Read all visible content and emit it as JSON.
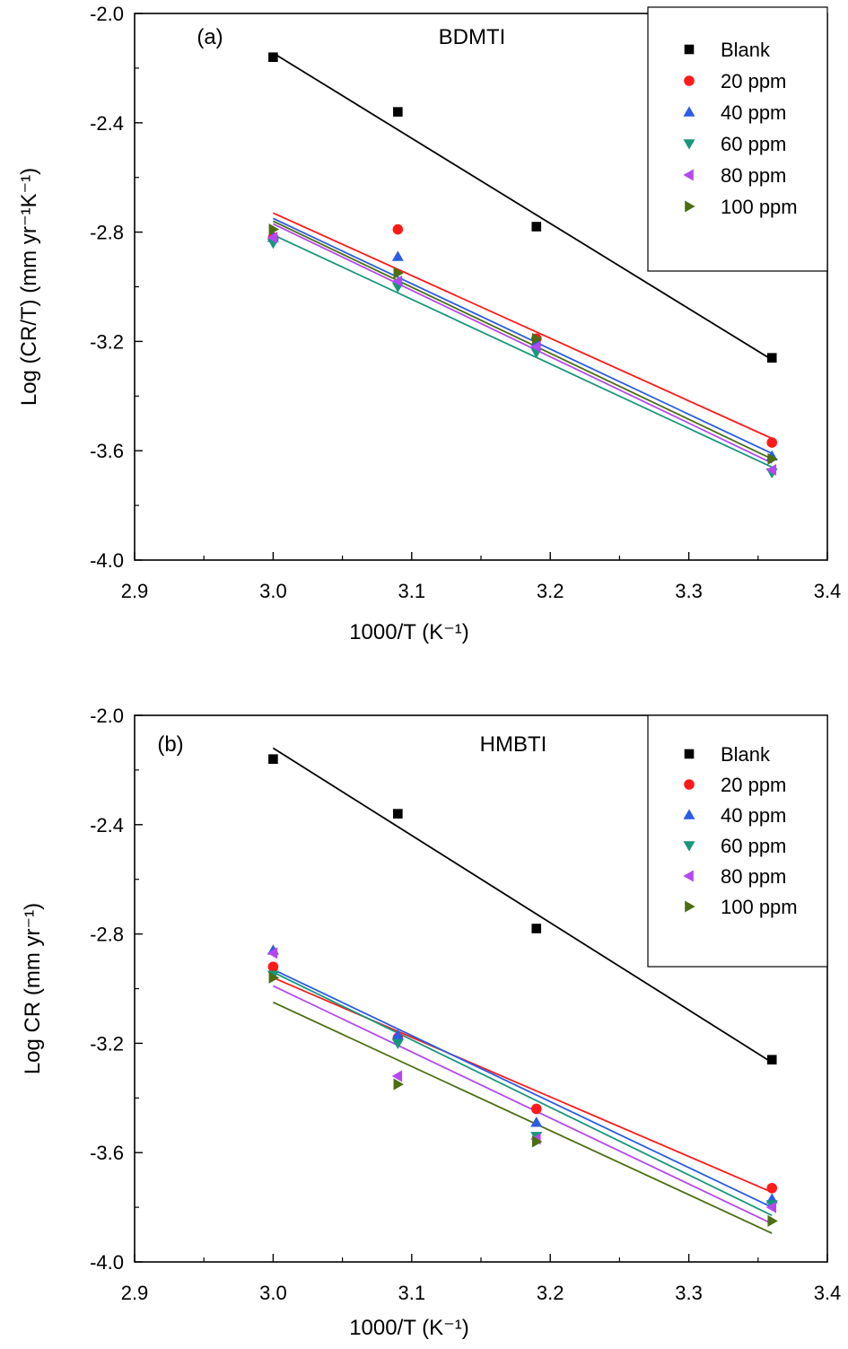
{
  "series_styles": [
    {
      "marker": "square",
      "color": "#000000"
    },
    {
      "marker": "circle",
      "color": "#ff1a1a"
    },
    {
      "marker": "triangle-up",
      "color": "#2a5ce6"
    },
    {
      "marker": "triangle-down",
      "color": "#17977a"
    },
    {
      "marker": "triangle-left",
      "color": "#b348f0"
    },
    {
      "marker": "triangle-right",
      "color": "#4b6e12"
    }
  ],
  "chart_data": [
    {
      "type": "scatter",
      "panel_tag": "(a)",
      "title": "BDMTI",
      "xlabel": "1000/T (K⁻¹)",
      "ylabel": "Log (CR/T) (mm yr⁻¹K⁻¹)",
      "xlim": [
        2.9,
        3.4
      ],
      "ylim": [
        -4.0,
        -2.0
      ],
      "xticks": [
        "2.9",
        "3.0",
        "3.1",
        "3.2",
        "3.3",
        "3.4"
      ],
      "yticks": [
        "-2.0",
        "-2.4",
        "-2.8",
        "-3.2",
        "-3.6",
        "-4.0"
      ],
      "grid": false,
      "legend_position": "top-right",
      "x": [
        3.0,
        3.09,
        3.19,
        3.36
      ],
      "series": [
        {
          "name": "Blank",
          "values": [
            -2.16,
            -2.36,
            -2.78,
            -3.26
          ],
          "fit": [
            -2.145,
            -3.267
          ]
        },
        {
          "name": "20 ppm",
          "values": [
            -2.82,
            -2.79,
            -3.19,
            -3.57
          ],
          "fit": [
            -2.73,
            -3.555
          ]
        },
        {
          "name": "40 ppm",
          "values": [
            -2.82,
            -2.89,
            -3.2,
            -3.62
          ],
          "fit": [
            -2.75,
            -3.61
          ]
        },
        {
          "name": "60 ppm",
          "values": [
            -2.84,
            -3.0,
            -3.24,
            -3.68
          ],
          "fit": [
            -2.81,
            -3.66
          ]
        },
        {
          "name": "80 ppm",
          "values": [
            -2.82,
            -2.98,
            -3.22,
            -3.67
          ],
          "fit": [
            -2.77,
            -3.645
          ]
        },
        {
          "name": "100 ppm",
          "values": [
            -2.79,
            -2.95,
            -3.19,
            -3.63
          ],
          "fit": [
            -2.76,
            -3.63
          ]
        }
      ]
    },
    {
      "type": "scatter",
      "panel_tag": "(b)",
      "title": "HMBTI",
      "xlabel": "1000/T (K⁻¹)",
      "ylabel": "Log CR (mm yr⁻¹)",
      "xlim": [
        2.9,
        3.4
      ],
      "ylim": [
        -4.0,
        -2.0
      ],
      "xticks": [
        "2.9",
        "3.0",
        "3.1",
        "3.2",
        "3.3",
        "3.4"
      ],
      "yticks": [
        "-2.0",
        "-2.4",
        "-2.8",
        "-3.2",
        "-3.6",
        "-4.0"
      ],
      "grid": false,
      "legend_position": "top-right",
      "x": [
        3.0,
        3.09,
        3.19,
        3.36
      ],
      "series": [
        {
          "name": "Blank",
          "values": [
            -2.16,
            -2.36,
            -2.78,
            -3.26
          ],
          "fit": [
            -2.12,
            -3.27
          ]
        },
        {
          "name": "20 ppm",
          "values": [
            -2.92,
            -3.18,
            -3.44,
            -3.73
          ],
          "fit": [
            -2.96,
            -3.745
          ]
        },
        {
          "name": "40 ppm",
          "values": [
            -2.86,
            -3.17,
            -3.49,
            -3.77
          ],
          "fit": [
            -2.93,
            -3.8
          ]
        },
        {
          "name": "60 ppm",
          "values": [
            -2.95,
            -3.2,
            -3.54,
            -3.79
          ],
          "fit": [
            -2.94,
            -3.83
          ]
        },
        {
          "name": "80 ppm",
          "values": [
            -2.87,
            -3.32,
            -3.55,
            -3.8
          ],
          "fit": [
            -2.99,
            -3.86
          ]
        },
        {
          "name": "100 ppm",
          "values": [
            -2.96,
            -3.35,
            -3.56,
            -3.85
          ],
          "fit": [
            -3.05,
            -3.895
          ]
        }
      ]
    }
  ]
}
